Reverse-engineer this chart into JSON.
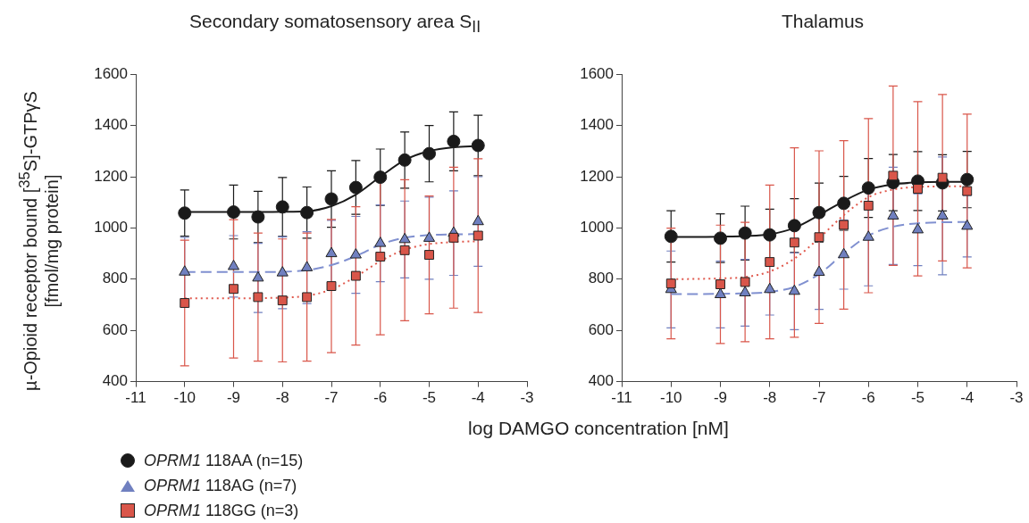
{
  "chart_data": [
    {
      "type": "scatter",
      "title": "Secondary somatosensory area S$_{II}$",
      "xlabel": "log DAMGO concentration [nM]",
      "ylabel": "µ-Opioid receptor bound [$^{35}$S]-GTPγS [fmol/mg protein]",
      "x": [
        -10,
        -9,
        -8.5,
        -8,
        -7.5,
        -7,
        -6.5,
        -6,
        -5.5,
        -5,
        -4.5,
        -4
      ],
      "xlim": [
        -11,
        -3
      ],
      "xticks": [
        -11,
        -10,
        -9,
        -8,
        -7,
        -6,
        -5,
        -4,
        -3
      ],
      "ylim": [
        400,
        1600
      ],
      "yticks": [
        400,
        600,
        800,
        1000,
        1200,
        1400,
        1600
      ],
      "grid": false,
      "legend": "bottom left",
      "series": [
        {
          "type": "line",
          "color": "#1a1a1a",
          "marker": "none",
          "line_style": "solid",
          "x": [
            -10,
            -9.5,
            -9,
            -8.5,
            -8,
            -7.5,
            -7,
            -6.5,
            -6,
            -5.5,
            -5,
            -4.5,
            -4
          ],
          "values": [
            1062,
            1062,
            1062,
            1062,
            1063,
            1065,
            1085,
            1130,
            1200,
            1265,
            1300,
            1315,
            1320
          ]
        },
        {
          "type": "line",
          "color": "#8090d0",
          "marker": "none",
          "line_style": "dashed",
          "x": [
            -10,
            -9.5,
            -9,
            -8.5,
            -8,
            -7.5,
            -7,
            -6.5,
            -6,
            -5.5,
            -5,
            -4.5,
            -4
          ],
          "values": [
            828,
            828,
            828,
            828,
            829,
            835,
            855,
            890,
            935,
            962,
            972,
            975,
            976
          ]
        },
        {
          "type": "line",
          "color": "#e0584c",
          "marker": "none",
          "line_style": "dotted",
          "x": [
            -10,
            -9.5,
            -9,
            -8.5,
            -8,
            -7.5,
            -7,
            -6.5,
            -6,
            -5.5,
            -5,
            -4.5,
            -4
          ],
          "values": [
            725,
            725,
            725,
            726,
            728,
            735,
            760,
            810,
            870,
            915,
            937,
            945,
            948
          ]
        },
        {
          "type": "scatter",
          "name": "OPRM1 118AA (n=15)",
          "color": "#1a1a1a",
          "marker": "circle",
          "values": [
            1058,
            1062,
            1043,
            1082,
            1060,
            1113,
            1158,
            1198,
            1265,
            1290,
            1338,
            1322
          ],
          "errors": [
            90,
            105,
            100,
            115,
            100,
            110,
            105,
            110,
            110,
            110,
            115,
            118
          ]
        },
        {
          "type": "scatter",
          "name": "OPRM1 118AG (n=7)",
          "color": "#7080c0",
          "marker": "triangle",
          "values": [
            828,
            850,
            805,
            825,
            845,
            900,
            895,
            940,
            955,
            960,
            980,
            1025
          ],
          "errors": [
            135,
            120,
            135,
            140,
            140,
            130,
            150,
            150,
            150,
            160,
            165,
            175
          ]
        },
        {
          "type": "scatter",
          "name": "OPRM1 118GG (n=3)",
          "color": "#d9564a",
          "marker": "square",
          "values": [
            707,
            762,
            730,
            717,
            730,
            773,
            813,
            888,
            913,
            895,
            962,
            970
          ],
          "errors": [
            245,
            270,
            250,
            240,
            250,
            260,
            270,
            305,
            275,
            230,
            275,
            300
          ]
        }
      ]
    },
    {
      "type": "scatter",
      "title": "Thalamus",
      "x": [
        -10,
        -9,
        -8.5,
        -8,
        -7.5,
        -7,
        -6.5,
        -6,
        -5.5,
        -5,
        -4.5,
        -4
      ],
      "xlim": [
        -11,
        -3
      ],
      "xticks": [
        -11,
        -10,
        -9,
        -8,
        -7,
        -6,
        -5,
        -4,
        -3
      ],
      "ylim": [
        400,
        1600
      ],
      "yticks": [
        400,
        600,
        800,
        1000,
        1200,
        1400,
        1600
      ],
      "grid": false,
      "series": [
        {
          "type": "line",
          "color": "#1a1a1a",
          "marker": "none",
          "line_style": "solid",
          "x": [
            -10,
            -9.5,
            -9,
            -8.5,
            -8,
            -7.5,
            -7,
            -6.5,
            -6,
            -5.5,
            -5,
            -4.5,
            -4
          ],
          "values": [
            965,
            965,
            966,
            968,
            975,
            1000,
            1050,
            1105,
            1150,
            1170,
            1178,
            1180,
            1180
          ]
        },
        {
          "type": "line",
          "color": "#8090d0",
          "marker": "none",
          "line_style": "dashed",
          "x": [
            -10,
            -9.5,
            -9,
            -8.5,
            -8,
            -7.5,
            -7,
            -6.5,
            -6,
            -5.5,
            -5,
            -4.5,
            -4
          ],
          "values": [
            742,
            742,
            743,
            745,
            750,
            770,
            820,
            900,
            970,
            1005,
            1018,
            1022,
            1023
          ]
        },
        {
          "type": "line",
          "color": "#e0584c",
          "marker": "none",
          "line_style": "dotted",
          "x": [
            -10,
            -9.5,
            -9,
            -8.5,
            -8,
            -7.5,
            -7,
            -6.5,
            -6,
            -5.5,
            -5,
            -4.5,
            -4
          ],
          "values": [
            800,
            801,
            803,
            808,
            830,
            880,
            960,
            1050,
            1120,
            1150,
            1160,
            1162,
            1163
          ]
        },
        {
          "type": "scatter",
          "color": "#1a1a1a",
          "marker": "circle",
          "values": [
            967,
            960,
            980,
            973,
            1009,
            1060,
            1096,
            1156,
            1177,
            1183,
            1176,
            1189
          ],
          "errors": [
            100,
            95,
            105,
            100,
            105,
            115,
            105,
            115,
            110,
            115,
            110,
            110
          ]
        },
        {
          "type": "scatter",
          "color": "#7080c0",
          "marker": "triangle",
          "values": [
            760,
            740,
            747,
            760,
            753,
            827,
            896,
            964,
            1047,
            993,
            1047,
            1007
          ],
          "errors": [
            150,
            130,
            130,
            100,
            150,
            145,
            135,
            190,
            190,
            140,
            230,
            120
          ]
        },
        {
          "type": "scatter",
          "color": "#d9564a",
          "marker": "square",
          "values": [
            783,
            780,
            789,
            867,
            943,
            964,
            1012,
            1087,
            1204,
            1153,
            1196,
            1144
          ],
          "errors": [
            216,
            231,
            233,
            300,
            370,
            337,
            329,
            340,
            350,
            340,
            325,
            300
          ]
        }
      ]
    }
  ]
}
